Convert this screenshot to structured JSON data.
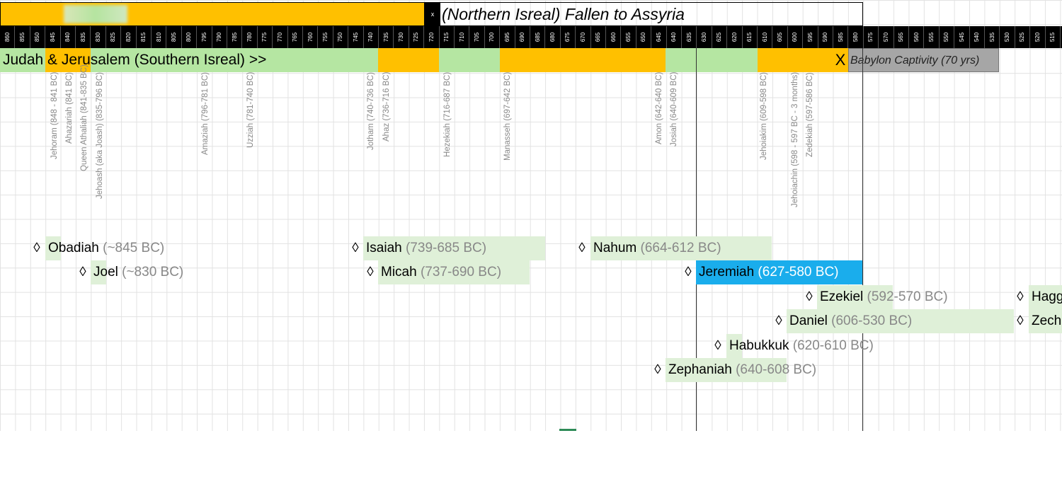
{
  "header": {
    "x_mark": "x",
    "northern_title": "(Northern Isreal) Fallen to Assyria"
  },
  "years": [
    860,
    855,
    850,
    845,
    840,
    835,
    830,
    825,
    820,
    815,
    810,
    805,
    800,
    795,
    790,
    785,
    780,
    775,
    770,
    765,
    760,
    755,
    750,
    745,
    740,
    735,
    730,
    725,
    720,
    715,
    710,
    705,
    700,
    695,
    690,
    685,
    680,
    675,
    670,
    665,
    660,
    655,
    650,
    645,
    640,
    635,
    630,
    625,
    620,
    615,
    610,
    605,
    600,
    595,
    590,
    585,
    580,
    575,
    570,
    565,
    560,
    555,
    550,
    545,
    540,
    535,
    530,
    525,
    520,
    515
  ],
  "judah": {
    "title": "Judah & Jerusalem (Southern Isreal) >>",
    "end_mark": "X",
    "babylon": "Babylon Captivity (70 yrs)"
  },
  "kings": [
    "Jehoram (848 - 841 BC)",
    "Ahazariah (841 BC)",
    "Queen Athaliah (841-835 BC)",
    "Jehoash (aka Joash) (835-796 BC)",
    "Amaziah (796-781 BC)",
    "Uzziah (781-740 BC)",
    "Jotham (740-736 BC)",
    "Ahaz (736-716 BC)",
    "Hezekiah (716-687 BC)",
    "Manasseh (697-642 BC)",
    "Amon (642-640 BC)",
    "Josiah (640-609 BC)",
    "Jehoiakim (609-598 BC)",
    "Jehoiachin (598 - 597 BC - 3 months)",
    "Zedekiah (597-586 BC)"
  ],
  "prophets": [
    {
      "name": "Obadiah",
      "dates": "(~845 BC)"
    },
    {
      "name": "Joel",
      "dates": "(~830 BC)"
    },
    {
      "name": "Isaiah",
      "dates": "(739-685 BC)"
    },
    {
      "name": "Micah",
      "dates": "(737-690 BC)"
    },
    {
      "name": "Nahum",
      "dates": "(664-612  BC)"
    },
    {
      "name": "Jeremiah",
      "dates": "(627-580 BC)"
    },
    {
      "name": "Ezekiel",
      "dates": "(592-570 BC)"
    },
    {
      "name": "Daniel",
      "dates": "(606-530 BC)"
    },
    {
      "name": "Habukkuk",
      "dates": "(620-610 BC)"
    },
    {
      "name": "Zephaniah",
      "dates": "(640-608 BC)"
    },
    {
      "name": "Hagg",
      "dates": ""
    },
    {
      "name": "Zech",
      "dates": ""
    }
  ],
  "diamond": "◊",
  "colors": {
    "gold": "#ffc000",
    "green": "#b5e6a2",
    "light_green": "#dff0d8",
    "blue": "#1aadec",
    "gray": "#a6a6a6"
  }
}
